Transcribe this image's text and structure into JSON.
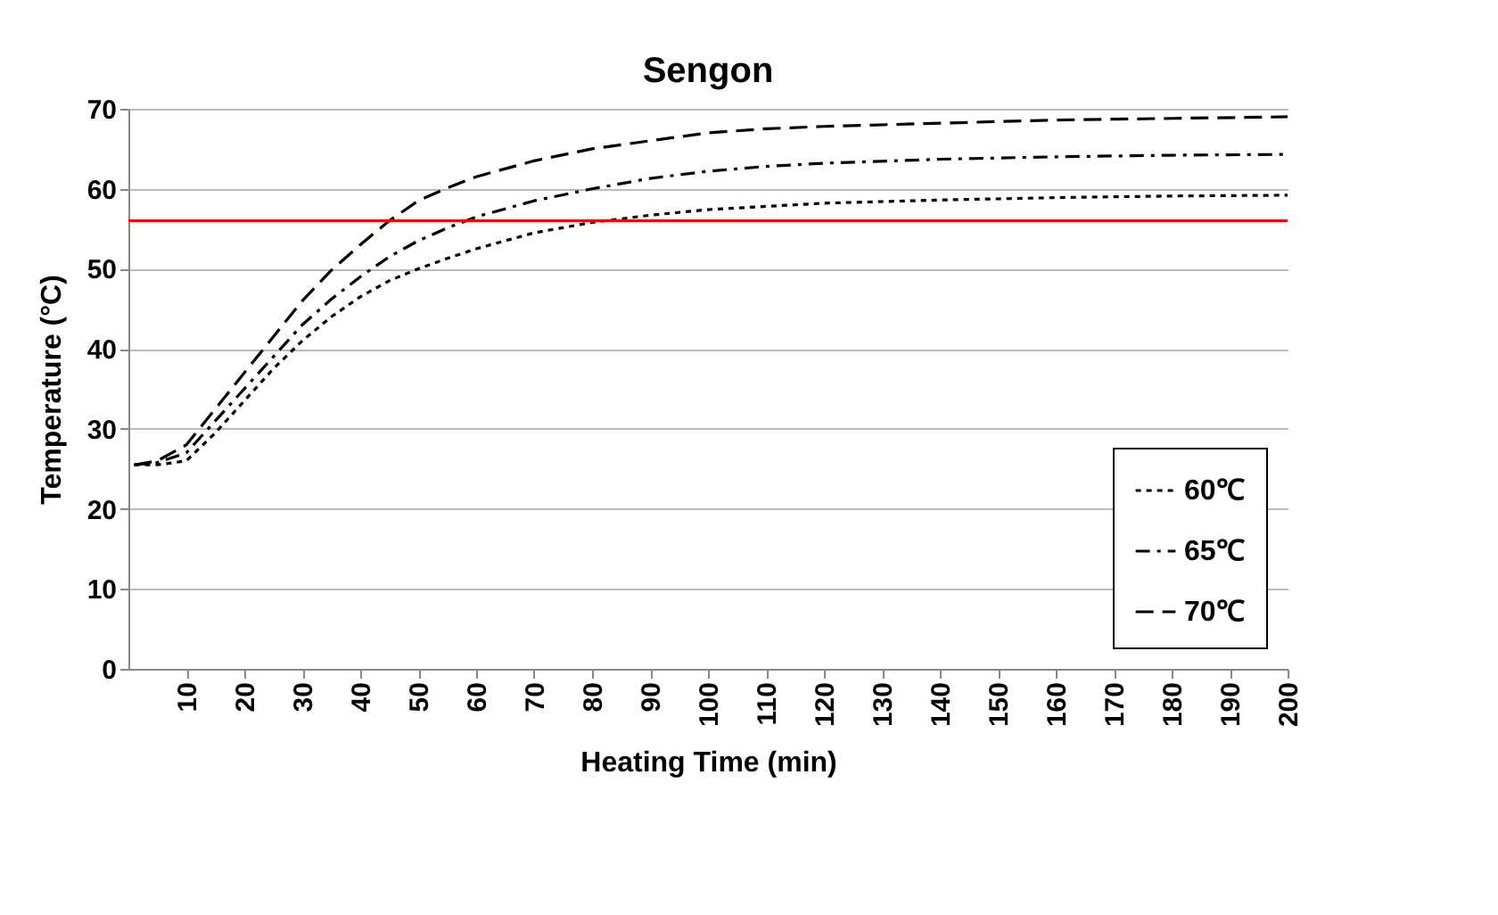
{
  "chart_data": {
    "type": "line",
    "title": "Sengon",
    "xlabel": "Heating Time (min)",
    "ylabel": "Temperature (°C)",
    "x": [
      1,
      5,
      10,
      15,
      20,
      25,
      30,
      35,
      40,
      45,
      50,
      55,
      60,
      70,
      80,
      90,
      100,
      110,
      120,
      140,
      160,
      180,
      200
    ],
    "series": [
      {
        "name": "60℃",
        "color": "#000000",
        "line_style": "dotted",
        "values": [
          25.5,
          25.5,
          26,
          29.5,
          33.5,
          37.5,
          41,
          44,
          46.5,
          48.5,
          50,
          51.3,
          52.5,
          54.5,
          55.8,
          56.7,
          57.4,
          57.8,
          58.2,
          58.6,
          58.9,
          59.1,
          59.2
        ]
      },
      {
        "name": "65℃",
        "color": "#000000",
        "line_style": "dashdot",
        "values": [
          25.5,
          25.8,
          27,
          31,
          35,
          39,
          43,
          46.2,
          49,
          51.5,
          53.5,
          55.1,
          56.5,
          58.5,
          60,
          61.3,
          62.2,
          62.8,
          63.2,
          63.7,
          64,
          64.2,
          64.3
        ]
      },
      {
        "name": "70℃",
        "color": "#000000",
        "line_style": "dashed",
        "values": [
          25.5,
          26,
          28,
          32.5,
          37,
          41.5,
          46,
          49.8,
          53,
          56,
          58.5,
          60.1,
          61.5,
          63.5,
          65,
          66,
          67,
          67.5,
          67.8,
          68.2,
          68.6,
          68.8,
          69
        ]
      }
    ],
    "xlim": [
      0,
      200
    ],
    "xticks": [
      10,
      20,
      30,
      40,
      50,
      60,
      70,
      80,
      90,
      100,
      110,
      120,
      130,
      140,
      150,
      160,
      170,
      180,
      190,
      200
    ],
    "ylim": [
      0,
      70
    ],
    "yticks": [
      0,
      10,
      20,
      30,
      40,
      50,
      60,
      70
    ],
    "ref_lines": [
      {
        "axis": "y",
        "value": 56,
        "color": "#ff0000"
      }
    ],
    "grid": "y",
    "legend": "bottom right",
    "marker": "none"
  }
}
